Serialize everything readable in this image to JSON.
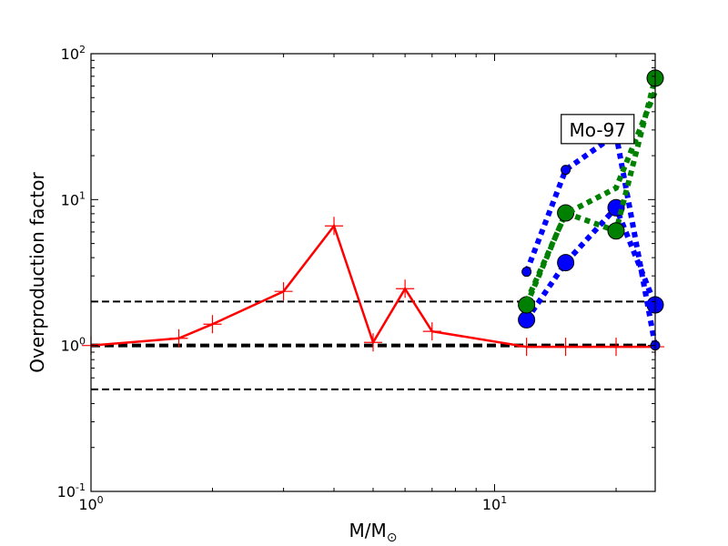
{
  "chart_data": {
    "type": "line",
    "xscale": "log",
    "yscale": "log",
    "xlim": [
      1,
      25
    ],
    "ylim": [
      0.1,
      100
    ],
    "xlabel": "M/M",
    "xlabel_sub": "⊙",
    "ylabel": "Overproduction factor",
    "x_ticks": [
      {
        "value": 1,
        "base": "10",
        "exp": "0"
      },
      {
        "value": 10,
        "base": "10",
        "exp": "1"
      }
    ],
    "y_ticks": [
      {
        "value": 0.1,
        "base": "10",
        "exp": "-1"
      },
      {
        "value": 1,
        "base": "10",
        "exp": "0"
      },
      {
        "value": 10,
        "base": "10",
        "exp": "1"
      },
      {
        "value": 100,
        "base": "10",
        "exp": "2"
      }
    ],
    "reference_lines": [
      {
        "y": 2.0,
        "style": "dashed",
        "width": 2
      },
      {
        "y": 1.0,
        "style": "dashed",
        "width": 4
      },
      {
        "y": 0.5,
        "style": "dashed",
        "width": 2
      }
    ],
    "annotation": {
      "text": "Mo-97",
      "x": 18.0,
      "y": 30
    },
    "series": [
      {
        "color": "#ff0000",
        "style": "solid",
        "marker": "plus",
        "x": [
          1,
          1.65,
          2,
          3,
          4,
          5,
          6,
          7,
          12,
          15,
          20,
          25
        ],
        "y": [
          1.0,
          1.12,
          1.4,
          2.35,
          6.6,
          1.05,
          2.45,
          1.25,
          0.98,
          0.98,
          0.98,
          0.98
        ]
      },
      {
        "color": "#0000ff",
        "style": "dotted",
        "marker": "circle",
        "x": [
          12,
          15,
          20,
          25
        ],
        "y": [
          1.5,
          3.7,
          8.8,
          1.9
        ]
      },
      {
        "color": "#0000ff",
        "style": "dotted",
        "marker": "small-circle",
        "x": [
          12,
          15,
          20,
          25
        ],
        "y": [
          3.2,
          16,
          28,
          1.0
        ]
      },
      {
        "color": "#008000",
        "style": "dotted",
        "marker": "circle",
        "x": [
          12,
          15,
          20,
          25
        ],
        "y": [
          1.9,
          8.1,
          6.1,
          68
        ]
      },
      {
        "color": "#008000",
        "style": "dotted",
        "marker": "none",
        "x": [
          12,
          15,
          20,
          25
        ],
        "y": [
          2.0,
          8.0,
          12,
          55
        ]
      }
    ]
  }
}
